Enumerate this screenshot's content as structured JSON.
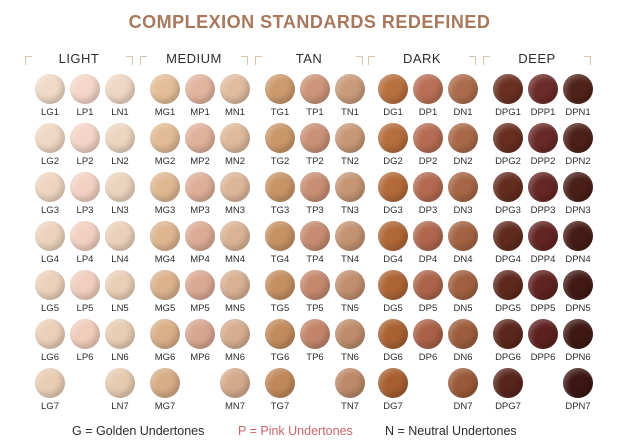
{
  "title": "COMPLEXION STANDARDS REDEFINED",
  "colors": {
    "title": "#a7785b",
    "pink_legend": "#c9676b",
    "text": "#2d2d2d",
    "bracket": "#d9c4ad"
  },
  "groups": [
    {
      "name": "LIGHT",
      "columns": [
        {
          "codes": [
            "LG1",
            "LG2",
            "LG3",
            "LG4",
            "LG5",
            "LG6",
            "LG7"
          ],
          "colors": [
            "#f1d9c6",
            "#f0d7c3",
            "#efd5c0",
            "#edd3bd",
            "#ecd1ba",
            "#ebcfb8",
            "#e9cdb5"
          ]
        },
        {
          "codes": [
            "LP1",
            "LP2",
            "LP3",
            "LP4",
            "LP5",
            "LP6",
            ""
          ],
          "colors": [
            "#f5d6c9",
            "#f4d4c6",
            "#f3d2c4",
            "#f2d0c1",
            "#f1cebe",
            "#f0ccbb",
            ""
          ]
        },
        {
          "codes": [
            "LN1",
            "LN2",
            "LN3",
            "LN4",
            "LN5",
            "LN6",
            "LN7"
          ],
          "colors": [
            "#eed7c3",
            "#edd5c0",
            "#ecd3bd",
            "#ebd1ba",
            "#eacfb7",
            "#e8cdb4",
            "#e7cbb1"
          ]
        }
      ]
    },
    {
      "name": "MEDIUM",
      "columns": [
        {
          "codes": [
            "MG1",
            "MG2",
            "MG3",
            "MG4",
            "MG5",
            "MG6",
            "MG7"
          ],
          "colors": [
            "#e3be98",
            "#e1bb95",
            "#dfb892",
            "#ddb58f",
            "#dbb28c",
            "#d9af89",
            "#d7ac86"
          ]
        },
        {
          "codes": [
            "MP1",
            "MP2",
            "MP3",
            "MP4",
            "MP5",
            "MP6",
            ""
          ],
          "colors": [
            "#e2b49f",
            "#e0b19c",
            "#deae99",
            "#dcab96",
            "#daa893",
            "#d8a590",
            ""
          ]
        },
        {
          "codes": [
            "MN1",
            "MN2",
            "MN3",
            "MN4",
            "MN5",
            "MN6",
            "MN7"
          ],
          "colors": [
            "#e0bc9f",
            "#deb99c",
            "#dcb699",
            "#dab396",
            "#d8b093",
            "#d6ad90",
            "#d4aa8d"
          ]
        }
      ]
    },
    {
      "name": "TAN",
      "columns": [
        {
          "codes": [
            "TG1",
            "TG2",
            "TG3",
            "TG4",
            "TG5",
            "TG6",
            "TG7"
          ],
          "colors": [
            "#cc9a6c",
            "#ca9769",
            "#c89466",
            "#c69163",
            "#c48e60",
            "#c28b5d",
            "#c0885a"
          ]
        },
        {
          "codes": [
            "TP1",
            "TP2",
            "TP3",
            "TP4",
            "TP5",
            "TP6",
            ""
          ],
          "colors": [
            "#cc9479",
            "#ca9176",
            "#c88e73",
            "#c68b70",
            "#c4886d",
            "#c2856a",
            ""
          ]
        },
        {
          "codes": [
            "TN1",
            "TN2",
            "TN3",
            "TN4",
            "TN5",
            "TN6",
            "TN7"
          ],
          "colors": [
            "#c99b7a",
            "#c79877",
            "#c59574",
            "#c39271",
            "#c18f6e",
            "#bf8c6b",
            "#bd8968"
          ]
        }
      ]
    },
    {
      "name": "DARK",
      "columns": [
        {
          "codes": [
            "DG1",
            "DG2",
            "DG3",
            "DG4",
            "DG5",
            "DG6",
            "DG7"
          ],
          "colors": [
            "#b8703f",
            "#b56d3c",
            "#b26a3a",
            "#af6737",
            "#ac6435",
            "#a96132",
            "#a65e30"
          ]
        },
        {
          "codes": [
            "DP1",
            "DP2",
            "DP3",
            "DP4",
            "DP5",
            "DP6",
            ""
          ],
          "colors": [
            "#b86f55",
            "#b56c52",
            "#b2694f",
            "#af664c",
            "#ac6349",
            "#a96046",
            ""
          ]
        },
        {
          "codes": [
            "DN1",
            "DN2",
            "DN3",
            "DN4",
            "DN5",
            "DN6",
            "DN7"
          ],
          "colors": [
            "#ac6c4b",
            "#a96948",
            "#a66645",
            "#a36342",
            "#a0603f",
            "#9d5d3c",
            "#9a5a39"
          ]
        }
      ]
    },
    {
      "name": "DEEP",
      "columns": [
        {
          "codes": [
            "DPG1",
            "DPG2",
            "DPG3",
            "DPG4",
            "DPG5",
            "DPG6",
            "DPG7"
          ],
          "colors": [
            "#6a3021",
            "#672e20",
            "#642c1f",
            "#612a1e",
            "#5e281d",
            "#5b261c",
            "#58241b"
          ]
        },
        {
          "codes": [
            "DPP1",
            "DPP2",
            "DPP3",
            "DPP4",
            "DPP5",
            "DPP6",
            ""
          ],
          "colors": [
            "#6b2b28",
            "#682926",
            "#652724",
            "#622522",
            "#5f2320",
            "#5c211e",
            ""
          ]
        },
        {
          "codes": [
            "DPN1",
            "DPN2",
            "DPN3",
            "DPN4",
            "DPN5",
            "DPN6",
            "DPN7"
          ],
          "colors": [
            "#4e2218",
            "#4b2017",
            "#481e16",
            "#451c15",
            "#421a14",
            "#3f1813",
            "#3c1612"
          ]
        }
      ]
    }
  ],
  "legend": [
    {
      "text": "G = Golden Undertones",
      "tone": "golden"
    },
    {
      "text": "P = Pink Undertones",
      "tone": "pink"
    },
    {
      "text": "N = Neutral Undertones",
      "tone": "neutral"
    }
  ]
}
